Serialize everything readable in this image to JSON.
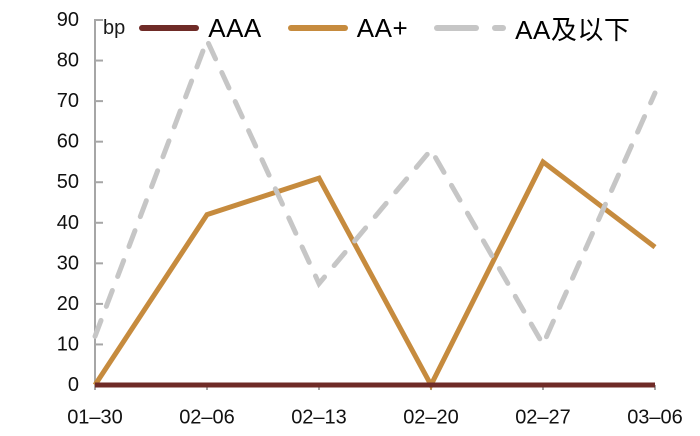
{
  "chart": {
    "unit_label": "bp"
  },
  "chart_data": {
    "type": "line",
    "title": "",
    "xlabel": "",
    "ylabel": "bp",
    "categories": [
      "01–30",
      "02–06",
      "02–13",
      "02–20",
      "02–27",
      "03–06"
    ],
    "series": [
      {
        "name": "AAA",
        "color": "#6f2b27",
        "style": "solid",
        "values": [
          0,
          0,
          0,
          0,
          0,
          0
        ]
      },
      {
        "name": "AA+",
        "color": "#c68b3e",
        "style": "solid",
        "values": [
          0,
          42,
          51,
          0,
          55,
          34
        ]
      },
      {
        "name": "AA及以下",
        "color": "#c6c6c6",
        "style": "dashed",
        "values": [
          12,
          85,
          25,
          58,
          10,
          72
        ]
      }
    ],
    "draw_order": [
      1,
      0,
      2
    ],
    "ylim": [
      0,
      90
    ],
    "yticks": [
      0,
      10,
      20,
      30,
      40,
      50,
      60,
      70,
      80,
      90
    ],
    "grid": false,
    "legend_position": "top",
    "axis_color": "#a6a6a6",
    "text_color": "#111111",
    "line_width": 5,
    "dash_pattern": "17 15"
  }
}
